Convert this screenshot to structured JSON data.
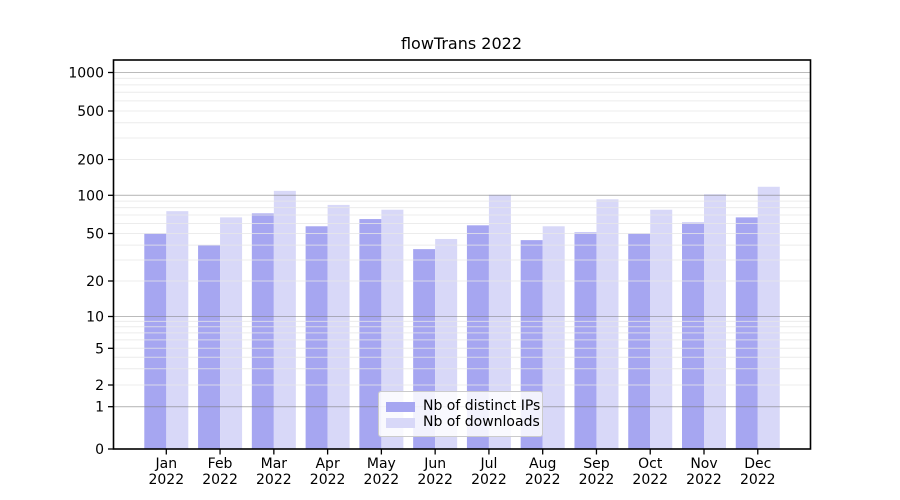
{
  "chart_data": {
    "type": "bar",
    "title": "flowTrans 2022",
    "categories": [
      "Jan 2022",
      "Feb 2022",
      "Mar 2022",
      "Apr 2022",
      "May 2022",
      "Jun 2022",
      "Jul 2022",
      "Aug 2022",
      "Sep 2022",
      "Oct 2022",
      "Nov 2022",
      "Dec 2022"
    ],
    "series": [
      {
        "name": "Nb of distinct IPs",
        "color": "#a6a6f1",
        "values": [
          50,
          40,
          72,
          57,
          65,
          37,
          58,
          44,
          51,
          50,
          61,
          67
        ]
      },
      {
        "name": "Nb of downloads",
        "color": "#d8d8f8",
        "values": [
          75,
          67,
          109,
          84,
          77,
          45,
          101,
          57,
          93,
          77,
          102,
          118
        ]
      }
    ],
    "yscale": "log-like",
    "ylim": [
      0,
      1300
    ],
    "yticks": [
      0,
      1,
      2,
      5,
      10,
      20,
      50,
      100,
      200,
      500,
      1000
    ],
    "xlabel": "",
    "ylabel": "",
    "grid": {
      "major": true,
      "minor": true,
      "orientation": "horizontal"
    },
    "legend": {
      "position": "lower center"
    }
  }
}
